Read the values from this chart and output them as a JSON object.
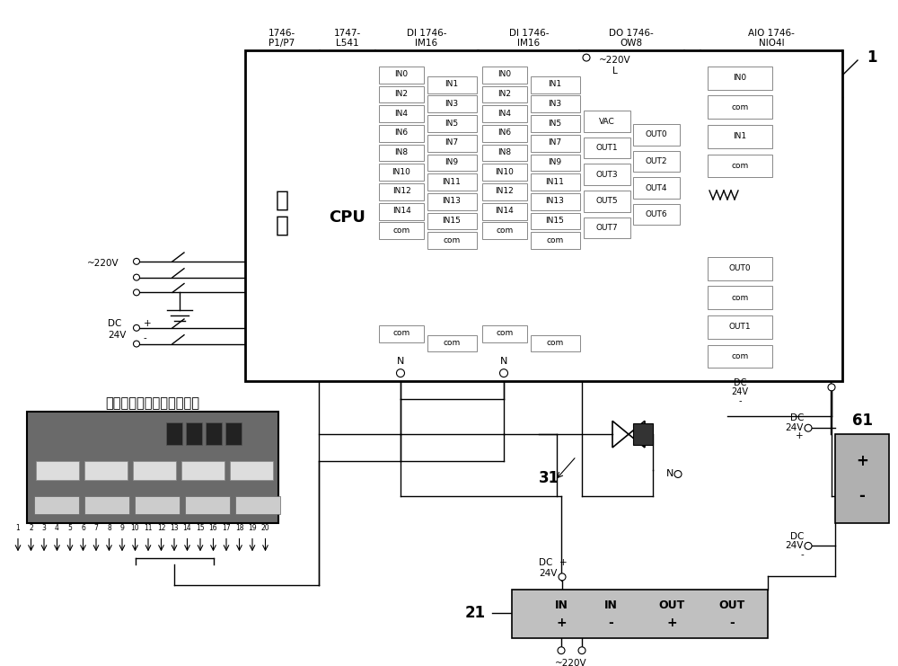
{
  "bg_color": "#ffffff",
  "chinese_label": "除尘器反吹系统脉冲控制板",
  "left_pins_di": [
    "IN0",
    "IN2",
    "IN4",
    "IN6",
    "IN8",
    "IN10",
    "IN12",
    "IN14",
    "com"
  ],
  "right_pins_di": [
    "IN1",
    "IN3",
    "IN5",
    "IN7",
    "IN9",
    "IN11",
    "IN13",
    "IN15",
    "com"
  ],
  "do_left_pins": [
    "VAC",
    "OUT1",
    "OUT3",
    "OUT5",
    "OUT7"
  ],
  "do_right_pins": [
    "OUT0",
    "OUT2",
    "OUT4",
    "OUT6"
  ],
  "aio_pins": [
    "IN0",
    "com",
    "IN1",
    "com",
    "OUT0",
    "com",
    "OUT1",
    "com"
  ],
  "aio_dc24v": "DC\n24V\n-"
}
